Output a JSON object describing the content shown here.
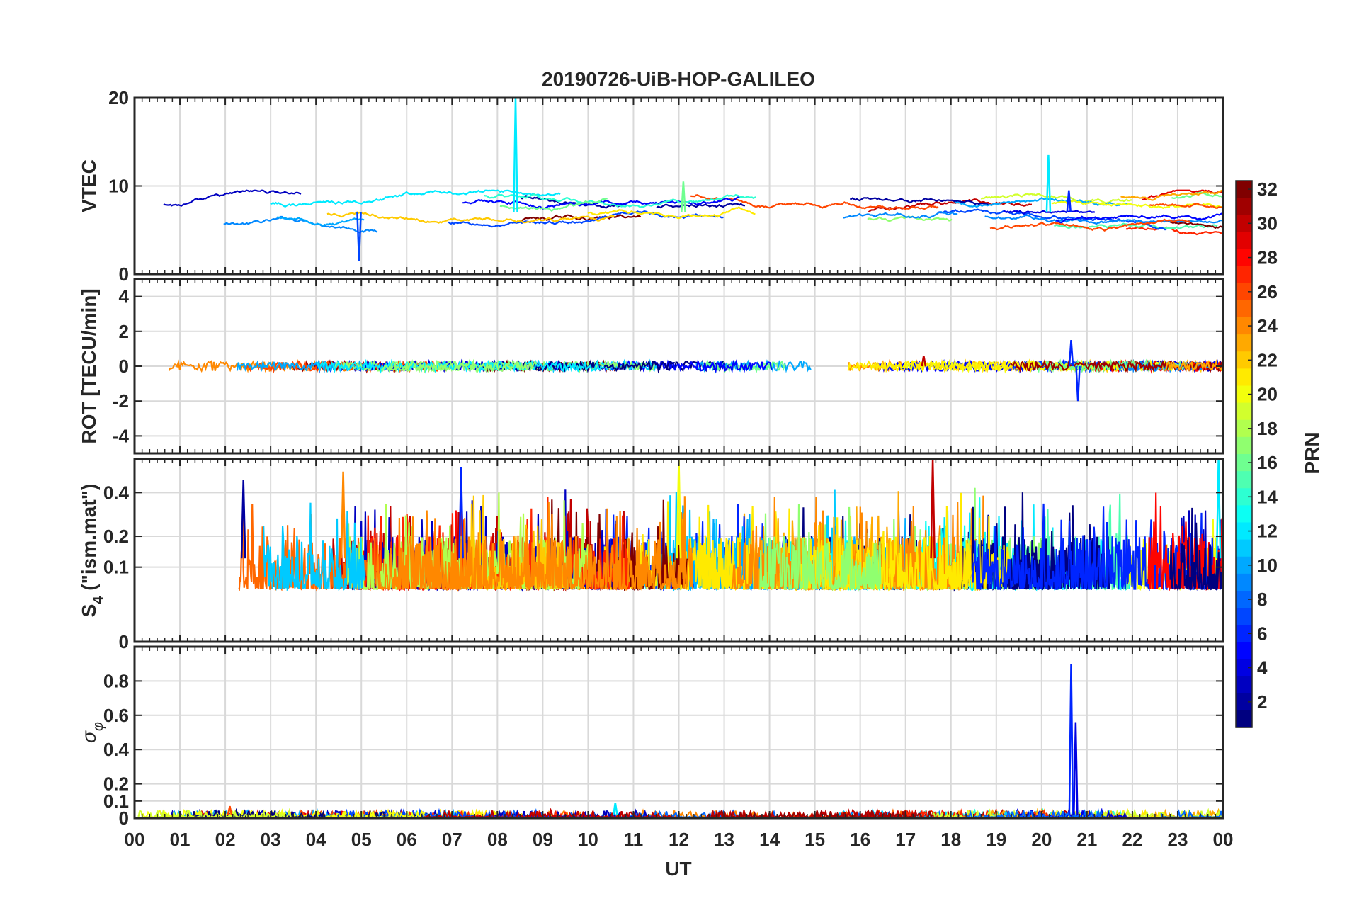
{
  "chart_data": {
    "title": "20190726-UiB-HOP-GALILEO",
    "type": "line",
    "xlabel": "UT",
    "x_tick_labels": [
      "00",
      "01",
      "02",
      "03",
      "04",
      "05",
      "06",
      "07",
      "08",
      "09",
      "10",
      "11",
      "12",
      "13",
      "14",
      "15",
      "16",
      "17",
      "18",
      "19",
      "20",
      "21",
      "22",
      "23",
      "00"
    ],
    "xlim": [
      0,
      24
    ],
    "grid": true,
    "colorbar": {
      "label": "PRN",
      "colormap": "jet",
      "range": [
        1,
        32
      ],
      "tick_labels": [
        "2",
        "4",
        "6",
        "8",
        "10",
        "12",
        "14",
        "16",
        "18",
        "20",
        "22",
        "24",
        "26",
        "28",
        "30",
        "32"
      ]
    },
    "panels": [
      {
        "id": "vtec",
        "ylabel": "VTEC",
        "ylim": [
          0,
          20
        ],
        "y_tick_labels": [
          "0",
          "10",
          "20"
        ],
        "typical_range": [
          5,
          9
        ],
        "features": [
          {
            "x": 8.4,
            "y": 20,
            "prn": 12
          },
          {
            "x": 4.95,
            "y": 1.5,
            "prn": 7
          },
          {
            "x": 20.6,
            "y": 9.5,
            "prn": 6
          },
          {
            "x": 20.15,
            "y": 13.5,
            "prn": 12
          },
          {
            "x": 12.1,
            "y": 10.5,
            "prn": 16
          }
        ]
      },
      {
        "id": "rot",
        "ylabel": "ROT [TECU/min]",
        "ylim": [
          -5,
          5
        ],
        "y_tick_labels": [
          "-4",
          "-2",
          "0",
          "2",
          "4"
        ],
        "typical_range": [
          -0.3,
          0.3
        ],
        "features": [
          {
            "x": 20.65,
            "y": 1.5,
            "prn": 6
          },
          {
            "x": 20.8,
            "y": -2.0,
            "prn": 6
          },
          {
            "x": 17.4,
            "y": 0.6,
            "prn": 30
          }
        ]
      },
      {
        "id": "s4",
        "ylabel": "S4 (\"ism.mat\")",
        "ylabel_main": "S",
        "ylabel_sub": "4",
        "ylabel_rest": " (\"ism.mat\")",
        "ylim": [
          0,
          0.6
        ],
        "y_scale": "sqrt",
        "y_tick_labels": [
          "0",
          "0.1",
          "0.2",
          "0.4"
        ],
        "typical_range": [
          0.05,
          0.2
        ],
        "features": [
          {
            "x": 12.0,
            "y": 0.6,
            "prn": 20
          },
          {
            "x": 17.6,
            "y": 0.6,
            "prn": 30
          },
          {
            "x": 23.9,
            "y": 0.6,
            "prn": 12
          },
          {
            "x": 7.2,
            "y": 0.55,
            "prn": 6
          },
          {
            "x": 4.6,
            "y": 0.52,
            "prn": 24
          },
          {
            "x": 2.4,
            "y": 0.47,
            "prn": 2
          }
        ]
      },
      {
        "id": "sigma_phi",
        "ylabel": "σφ",
        "ylabel_main": "σ",
        "ylabel_sub": "φ",
        "ylim": [
          0,
          1.0
        ],
        "y_tick_labels": [
          "0",
          "0.1",
          "0.2",
          "0.4",
          "0.6",
          "0.8"
        ],
        "typical_range": [
          0,
          0.04
        ],
        "features": [
          {
            "x": 20.65,
            "y": 0.9,
            "prn": 6
          },
          {
            "x": 20.75,
            "y": 0.56,
            "prn": 4
          },
          {
            "x": 2.1,
            "y": 0.07,
            "prn": 26
          },
          {
            "x": 10.6,
            "y": 0.09,
            "prn": 12
          }
        ]
      }
    ]
  }
}
